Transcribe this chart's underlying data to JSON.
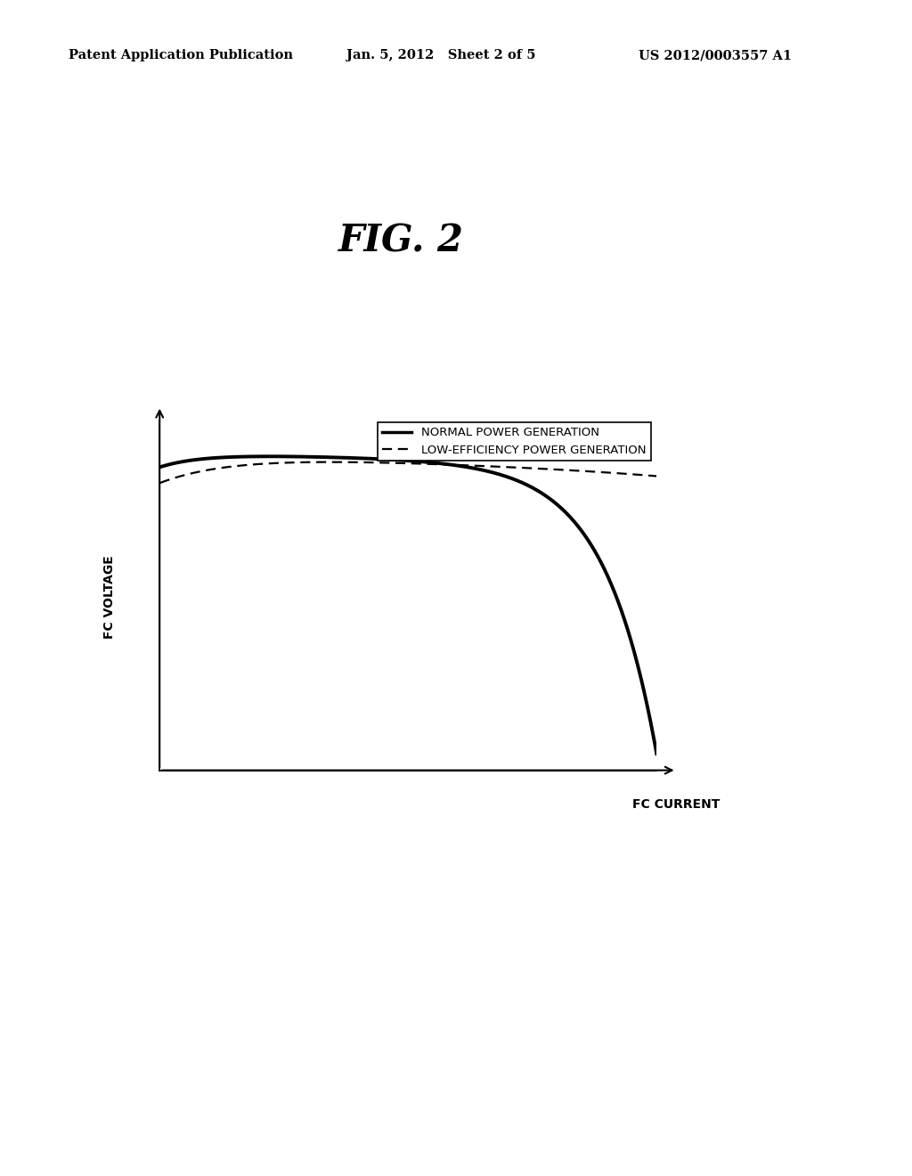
{
  "fig_label": "FIG. 2",
  "header_left": "Patent Application Publication",
  "header_center": "Jan. 5, 2012   Sheet 2 of 5",
  "header_right": "US 2012/0003557 A1",
  "xlabel": "FC CURRENT",
  "ylabel": "FC VOLTAGE",
  "legend_normal": "NORMAL POWER GENERATION",
  "legend_low": "LOW-EFFICIENCY POWER GENERATION",
  "bg_color": "#ffffff",
  "line_color": "#000000",
  "header_fontsize": 10.5,
  "fig_label_fontsize": 30,
  "axis_label_fontsize": 10,
  "legend_fontsize": 9.5
}
